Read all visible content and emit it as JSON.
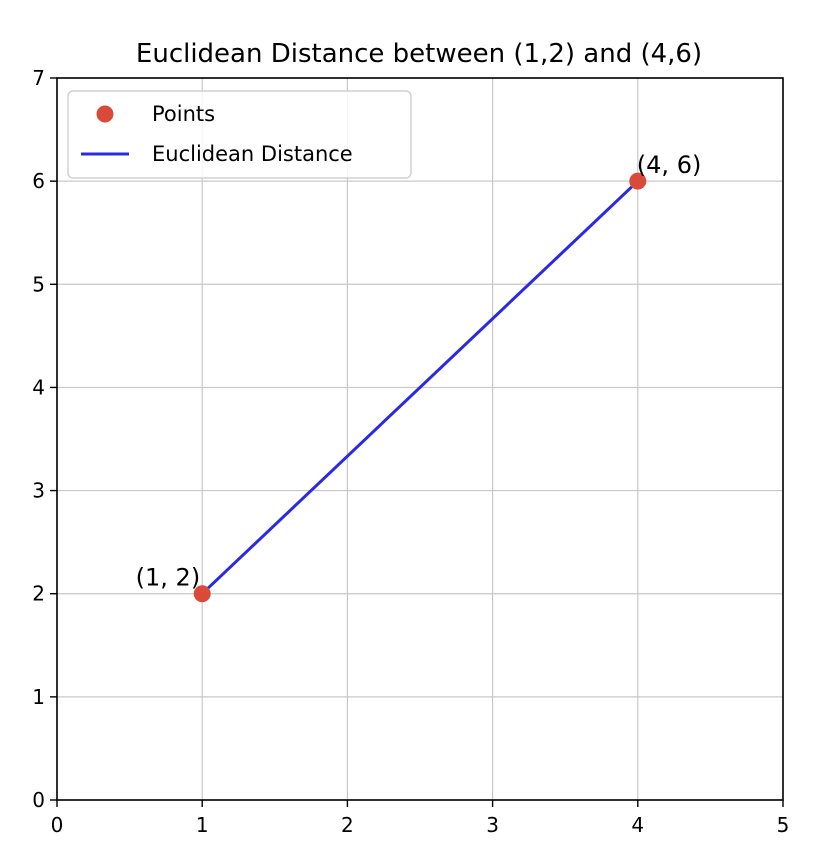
{
  "chart_data": {
    "type": "scatter",
    "title": "Euclidean Distance between (1,2) and (4,6)",
    "xlabel": "",
    "ylabel": "",
    "xlim": [
      0,
      5
    ],
    "ylim": [
      0,
      7
    ],
    "x_ticks": [
      0,
      1,
      2,
      3,
      4,
      5
    ],
    "y_ticks": [
      0,
      1,
      2,
      3,
      4,
      5,
      6,
      7
    ],
    "grid": true,
    "legend_placement": "upper-left",
    "series": [
      {
        "name": "Points",
        "kind": "scatter",
        "color": "#d94a38",
        "x": [
          1,
          4
        ],
        "y": [
          2,
          6
        ]
      },
      {
        "name": "Euclidean Distance",
        "kind": "line",
        "color": "#2a2ae6",
        "x": [
          1,
          4
        ],
        "y": [
          2,
          6
        ]
      }
    ],
    "annotations": [
      {
        "text": "(1, 2)",
        "x": 1,
        "y": 2,
        "anchor": "end"
      },
      {
        "text": "(4, 6)",
        "x": 4,
        "y": 6,
        "anchor": "start"
      }
    ]
  },
  "colors": {
    "axis": "#000000",
    "grid": "#c8c8c8",
    "legend_border": "#d0d0d0"
  }
}
